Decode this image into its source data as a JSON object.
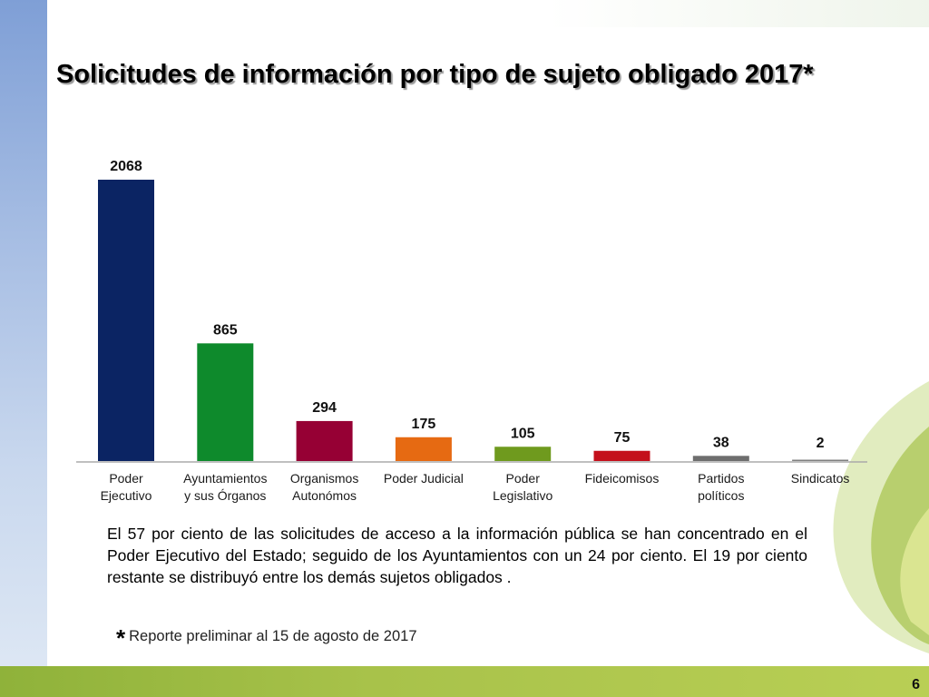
{
  "title": "Solicitudes de información por tipo de sujeto obligado 2017*",
  "colors": {
    "bar_colors": [
      "#0b2463",
      "#0e8a2c",
      "#960034",
      "#e66a12",
      "#6f9a1e",
      "#c4101c",
      "#6e6e6e",
      "#808080"
    ],
    "axis": "#aaaaaa",
    "accent_green": "#a8c24a",
    "accent_blue": "#8faadc"
  },
  "chart_data": {
    "type": "bar",
    "title": "",
    "xlabel": "",
    "ylabel": "",
    "categories": [
      [
        "Poder",
        "Ejecutivo"
      ],
      [
        "Ayuntamientos",
        "y sus Órganos"
      ],
      [
        "Organismos",
        "Autonómos"
      ],
      [
        "Poder Judicial"
      ],
      [
        "Poder",
        "Legislativo"
      ],
      [
        "Fideicomisos"
      ],
      [
        "Partidos",
        "políticos"
      ],
      [
        "Sindicatos"
      ]
    ],
    "values": [
      2068,
      865,
      294,
      175,
      105,
      75,
      38,
      2
    ],
    "data_labels": [
      "2068",
      "865",
      "294",
      "175",
      "105",
      "75",
      "38",
      "2"
    ],
    "ylim": [
      0,
      2068
    ],
    "grid": false,
    "legend": "none"
  },
  "paragraph": "El 57 por ciento de las solicitudes de acceso a la información pública se han concentrado en el Poder Ejecutivo del Estado; seguido de los Ayuntamientos con un 24 por ciento. El 19 por ciento restante se distribuyó entre los demás sujetos obligados .",
  "footnote": {
    "marker": "*",
    "text": "Reporte preliminar al 15 de agosto de 2017"
  },
  "page_number": "6",
  "decoration": {
    "swoosh_icon": "green-swoosh-icon"
  }
}
